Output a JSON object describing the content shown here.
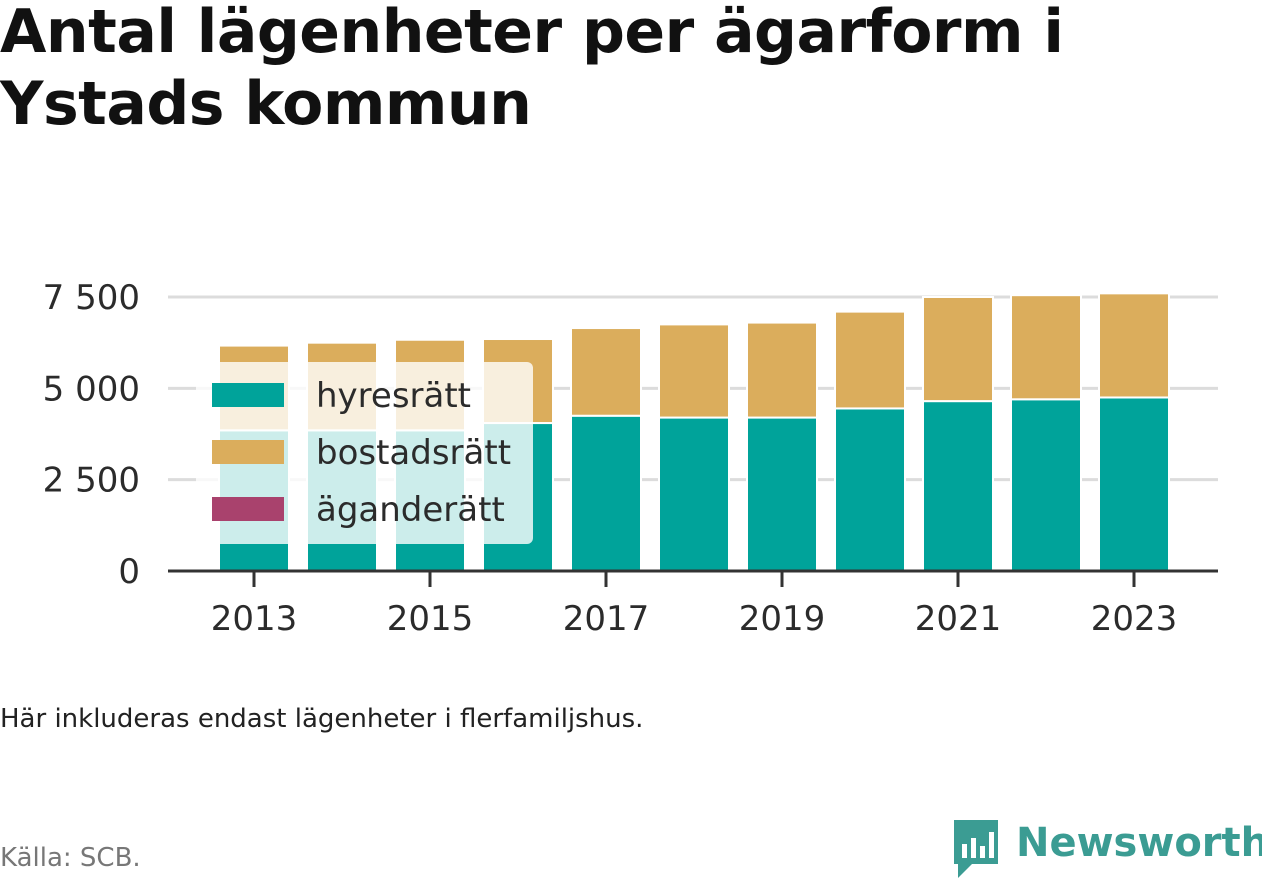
{
  "title": "Antal lägenheter per ägarform i Ystads kommun",
  "note": "Här inkluderas endast lägenheter i flerfamiljshus.",
  "source": "Källa: SCB.",
  "brand": "Newsworthy",
  "colors": {
    "hyresratt": "#00a39a",
    "bostadsratt": "#dbad5c",
    "aganderatt": "#a9426d",
    "grid": "#dcdcdc",
    "axis": "#333333",
    "brand": "#3b9c93"
  },
  "chart_data": {
    "type": "bar",
    "stacked": true,
    "categories": [
      2013,
      2014,
      2015,
      2016,
      2017,
      2018,
      2019,
      2020,
      2021,
      2022,
      2023
    ],
    "x_tick_labels": [
      "2013",
      "2015",
      "2017",
      "2019",
      "2021",
      "2023"
    ],
    "y_ticks": [
      0,
      2500,
      5000,
      7500
    ],
    "y_tick_labels": [
      "0",
      "2 500",
      "5 000",
      "7 500"
    ],
    "ylim": [
      0,
      7500
    ],
    "grid": true,
    "legend_position": "left",
    "series": [
      {
        "name": "hyresrätt",
        "values": [
          3850,
          3850,
          3850,
          4050,
          4250,
          4200,
          4200,
          4450,
          4650,
          4700,
          4750
        ]
      },
      {
        "name": "bostadsrätt",
        "values": [
          2320,
          2400,
          2480,
          2300,
          2400,
          2550,
          2600,
          2650,
          2850,
          2850,
          2850
        ]
      },
      {
        "name": "äganderätt",
        "values": [
          0,
          0,
          0,
          0,
          0,
          0,
          0,
          0,
          0,
          0,
          0
        ]
      }
    ]
  }
}
